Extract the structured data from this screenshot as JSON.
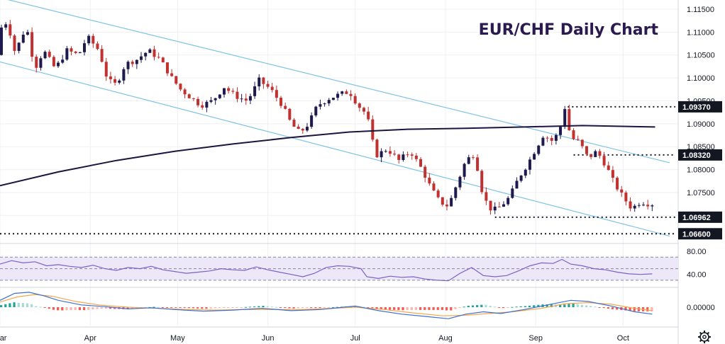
{
  "chart_data": {
    "type": "candlestick",
    "title": "EUR/CHF Daily Chart",
    "price_axis": {
      "ylim": [
        1.0645,
        1.117
      ],
      "ticks": [
        "1.11500",
        "1.11000",
        "1.10500",
        "1.10000",
        "1.09500",
        "1.09000",
        "1.08500",
        "1.08000",
        "1.07500",
        "1.07000"
      ],
      "tick_values": [
        1.115,
        1.11,
        1.105,
        1.1,
        1.095,
        1.09,
        1.085,
        1.08,
        1.075,
        1.07
      ]
    },
    "months": [
      {
        "label": "Mar",
        "day": 0
      },
      {
        "label": "Apr",
        "day": 31
      },
      {
        "label": "May",
        "day": 61
      },
      {
        "label": "Jun",
        "day": 92
      },
      {
        "label": "Jul",
        "day": 122
      },
      {
        "label": "Aug",
        "day": 153
      },
      {
        "label": "Sep",
        "day": 184
      },
      {
        "label": "Oct",
        "day": 214
      }
    ],
    "x_range_days": [
      0,
      230
    ],
    "price_path": [
      [
        0,
        1.105
      ],
      [
        2,
        1.113
      ],
      [
        4,
        1.111
      ],
      [
        6,
        1.106
      ],
      [
        8,
        1.108
      ],
      [
        10,
        1.1115
      ],
      [
        13,
        1.102
      ],
      [
        16,
        1.106
      ],
      [
        20,
        1.102
      ],
      [
        24,
        1.106
      ],
      [
        28,
        1.105
      ],
      [
        31,
        1.109
      ],
      [
        35,
        1.106
      ],
      [
        38,
        1.0995
      ],
      [
        41,
        1.0985
      ],
      [
        44,
        1.103
      ],
      [
        48,
        1.104
      ],
      [
        52,
        1.106
      ],
      [
        56,
        1.104
      ],
      [
        60,
        1.1
      ],
      [
        63,
        1.0975
      ],
      [
        66,
        1.096
      ],
      [
        70,
        1.094
      ],
      [
        74,
        1.095
      ],
      [
        78,
        1.098
      ],
      [
        82,
        1.096
      ],
      [
        86,
        1.095
      ],
      [
        90,
        1.0995
      ],
      [
        94,
        1.0975
      ],
      [
        98,
        1.094
      ],
      [
        101,
        1.09
      ],
      [
        104,
        1.088
      ],
      [
        107,
        1.09
      ],
      [
        110,
        1.094
      ],
      [
        114,
        1.0955
      ],
      [
        118,
        1.0965
      ],
      [
        121,
        1.097
      ],
      [
        124,
        1.094
      ],
      [
        127,
        1.092
      ],
      [
        130,
        1.083
      ],
      [
        134,
        1.0845
      ],
      [
        138,
        1.082
      ],
      [
        142,
        1.084
      ],
      [
        146,
        1.08
      ],
      [
        149,
        1.076
      ],
      [
        152,
        1.073
      ],
      [
        155,
        1.072
      ],
      [
        158,
        1.077
      ],
      [
        161,
        1.082
      ],
      [
        164,
        1.0835
      ],
      [
        167,
        1.074
      ],
      [
        170,
        1.071
      ],
      [
        173,
        1.072
      ],
      [
        176,
        1.074
      ],
      [
        179,
        1.078
      ],
      [
        182,
        1.081
      ],
      [
        185,
        1.0845
      ],
      [
        188,
        1.088
      ],
      [
        190,
        1.086
      ],
      [
        193,
        1.088
      ],
      [
        195,
        1.0935
      ],
      [
        197,
        1.087
      ],
      [
        200,
        1.086
      ],
      [
        203,
        1.0825
      ],
      [
        206,
        1.084
      ],
      [
        209,
        1.081
      ],
      [
        212,
        1.077
      ],
      [
        215,
        1.074
      ],
      [
        218,
        1.0715
      ],
      [
        221,
        1.073
      ],
      [
        224,
        1.0725
      ]
    ],
    "ma_path": [
      [
        0,
        1.0765
      ],
      [
        20,
        1.0795
      ],
      [
        40,
        1.082
      ],
      [
        60,
        1.084
      ],
      [
        80,
        1.0856
      ],
      [
        100,
        1.087
      ],
      [
        120,
        1.0882
      ],
      [
        140,
        1.0888
      ],
      [
        160,
        1.089
      ],
      [
        180,
        1.0893
      ],
      [
        200,
        1.0896
      ],
      [
        225,
        1.0893
      ]
    ],
    "channel": {
      "upper": [
        [
          0,
          1.1175
        ],
        [
          230,
          1.0815
        ]
      ],
      "lower": [
        [
          0,
          1.1035
        ],
        [
          230,
          1.0655
        ]
      ]
    },
    "levels": [
      {
        "value": 1.0937,
        "label": "1.09370",
        "from_day": 195
      },
      {
        "value": 1.0832,
        "label": "1.08320",
        "from_day": 197
      },
      {
        "value": 1.06962,
        "label": "1.06962",
        "from_day": 170
      },
      {
        "value": 1.066,
        "label": "1.06600",
        "from_day": 0
      }
    ],
    "rsi": {
      "ticks": [
        "80.00",
        "40.00"
      ],
      "tick_values": [
        80,
        40
      ],
      "ylim": [
        20,
        90
      ],
      "band": [
        30,
        70
      ],
      "mid": 50,
      "path": [
        [
          0,
          58
        ],
        [
          4,
          64
        ],
        [
          8,
          60
        ],
        [
          12,
          62
        ],
        [
          16,
          55
        ],
        [
          20,
          57
        ],
        [
          24,
          54
        ],
        [
          28,
          52
        ],
        [
          32,
          56
        ],
        [
          36,
          50
        ],
        [
          40,
          47
        ],
        [
          44,
          52
        ],
        [
          48,
          50
        ],
        [
          52,
          54
        ],
        [
          56,
          48
        ],
        [
          60,
          45
        ],
        [
          64,
          42
        ],
        [
          68,
          44
        ],
        [
          72,
          46
        ],
        [
          76,
          50
        ],
        [
          80,
          48
        ],
        [
          84,
          47
        ],
        [
          88,
          53
        ],
        [
          92,
          48
        ],
        [
          96,
          44
        ],
        [
          100,
          40
        ],
        [
          104,
          36
        ],
        [
          108,
          42
        ],
        [
          112,
          52
        ],
        [
          116,
          55
        ],
        [
          120,
          54
        ],
        [
          124,
          50
        ],
        [
          126,
          36
        ],
        [
          130,
          33
        ],
        [
          134,
          37
        ],
        [
          138,
          35
        ],
        [
          142,
          36
        ],
        [
          146,
          32
        ],
        [
          150,
          30
        ],
        [
          154,
          29
        ],
        [
          158,
          42
        ],
        [
          162,
          52
        ],
        [
          166,
          38
        ],
        [
          170,
          36
        ],
        [
          174,
          38
        ],
        [
          178,
          46
        ],
        [
          182,
          55
        ],
        [
          186,
          60
        ],
        [
          190,
          59
        ],
        [
          193,
          66
        ],
        [
          196,
          58
        ],
        [
          200,
          55
        ],
        [
          204,
          50
        ],
        [
          208,
          48
        ],
        [
          212,
          44
        ],
        [
          216,
          41
        ],
        [
          220,
          40
        ],
        [
          224,
          41
        ]
      ]
    },
    "macd": {
      "ticks": [
        "0.00000"
      ],
      "tick_values": [
        0
      ],
      "ylim": [
        -0.0032,
        0.0032
      ],
      "macd_path": [
        [
          0,
          0.0012
        ],
        [
          5,
          0.0024
        ],
        [
          10,
          0.0026
        ],
        [
          15,
          0.002
        ],
        [
          20,
          0.0012
        ],
        [
          28,
          0.0004
        ],
        [
          36,
          0.0001
        ],
        [
          44,
          -0.0003
        ],
        [
          52,
          -0.0001
        ],
        [
          60,
          -0.0004
        ],
        [
          70,
          -0.0007
        ],
        [
          80,
          -0.0005
        ],
        [
          90,
          -0.0002
        ],
        [
          100,
          -0.0006
        ],
        [
          110,
          -0.0004
        ],
        [
          118,
          0.0
        ],
        [
          122,
          0.0002
        ],
        [
          130,
          -0.0006
        ],
        [
          138,
          -0.0012
        ],
        [
          146,
          -0.0016
        ],
        [
          154,
          -0.002
        ],
        [
          160,
          -0.0012
        ],
        [
          166,
          -0.0008
        ],
        [
          172,
          -0.0011
        ],
        [
          180,
          -0.0004
        ],
        [
          188,
          0.0004
        ],
        [
          196,
          0.0012
        ],
        [
          202,
          0.001
        ],
        [
          210,
          0.0002
        ],
        [
          218,
          -0.0008
        ],
        [
          224,
          -0.0012
        ]
      ],
      "signal_path": [
        [
          0,
          0.0009
        ],
        [
          6,
          0.0018
        ],
        [
          12,
          0.0022
        ],
        [
          18,
          0.0019
        ],
        [
          26,
          0.001
        ],
        [
          34,
          0.0004
        ],
        [
          44,
          0.0
        ],
        [
          54,
          -0.0002
        ],
        [
          64,
          -0.0004
        ],
        [
          74,
          -0.0005
        ],
        [
          84,
          -0.0004
        ],
        [
          94,
          -0.0004
        ],
        [
          104,
          -0.0004
        ],
        [
          114,
          -0.0002
        ],
        [
          122,
          0.0
        ],
        [
          132,
          -0.0004
        ],
        [
          142,
          -0.001
        ],
        [
          152,
          -0.0015
        ],
        [
          160,
          -0.0014
        ],
        [
          168,
          -0.0011
        ],
        [
          176,
          -0.0008
        ],
        [
          186,
          -0.0002
        ],
        [
          194,
          0.0006
        ],
        [
          202,
          0.0008
        ],
        [
          210,
          0.0005
        ],
        [
          218,
          -0.0002
        ],
        [
          224,
          -0.0006
        ]
      ]
    },
    "colors": {
      "bull": "#1e1a4d",
      "bear": "#c0312f",
      "ma": "#1e1440",
      "channel": "#7ec3e6",
      "rsi_line": "#7b61c6",
      "rsi_band": "#ece8f7",
      "macd_line": "#3d6fd1",
      "signal_line": "#f5a64a",
      "hist_pos": "#22a39a",
      "hist_pos_light": "#a6dcd5",
      "hist_neg": "#f05b53",
      "hist_neg_light": "#f7b7b2",
      "tag_bg": "#131722",
      "title": "#2b1a4f"
    }
  }
}
